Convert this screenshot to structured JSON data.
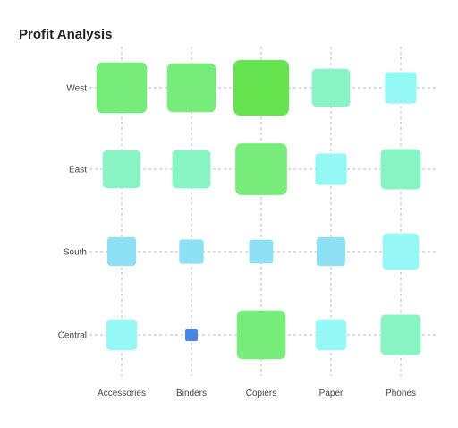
{
  "chart_data": {
    "type": "heatmap",
    "title": "Profit Analysis",
    "x_categories": [
      "Accessories",
      "Binders",
      "Copiers",
      "Paper",
      "Phones"
    ],
    "y_categories": [
      "West",
      "East",
      "South",
      "Central"
    ],
    "grid": true,
    "encoding": "square size and color scale with value",
    "values": [
      [
        9.0,
        8.6,
        10.0,
        6.4,
        5.0
      ],
      [
        6.3,
        6.4,
        9.2,
        5.0,
        6.8
      ],
      [
        4.4,
        3.5,
        3.4,
        4.4,
        6.0
      ],
      [
        4.8,
        1.0,
        8.6,
        4.8,
        6.8
      ]
    ],
    "color_scale": [
      "#4a86e8",
      "#6fbcf0",
      "#8ee0f4",
      "#96f8f4",
      "#88f4c4",
      "#78ec7a",
      "#66e450"
    ]
  }
}
